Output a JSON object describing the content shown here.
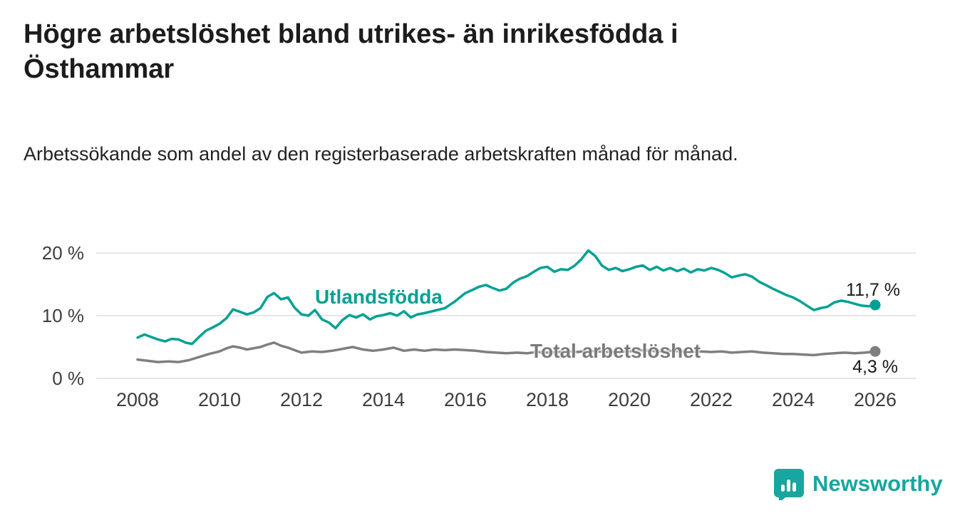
{
  "title": "Högre arbetslöshet bland utrikes- än inrikesfödda i Östhammar",
  "subtitle": "Arbetssökande som andel av den registerbaserade arbetskraften månad för månad.",
  "branding": {
    "name": "Newsworthy",
    "color": "#17a6a0",
    "icon": "bar-chart-speech-bubble"
  },
  "chart_data": {
    "type": "line",
    "title": "Högre arbetslöshet bland utrikes- än inrikesfödda i Östhammar",
    "subtitle": "Arbetssökande som andel av den registerbaserade arbetskraften månad för månad.",
    "grid": "horizontal",
    "x_axis": {
      "range": [
        2007.6,
        2026.9
      ],
      "ticks": [
        2008,
        2010,
        2012,
        2014,
        2016,
        2018,
        2020,
        2022,
        2024,
        2026
      ],
      "tick_labels": [
        "2008",
        "2010",
        "2012",
        "2014",
        "2016",
        "2018",
        "2020",
        "2022",
        "2024",
        "2026"
      ]
    },
    "y_axis": {
      "range": [
        0,
        21.5
      ],
      "ticks": [
        0,
        10,
        20
      ],
      "tick_labels": [
        "0 %",
        "10 %",
        "20 %"
      ],
      "unit": "%"
    },
    "series": [
      {
        "name": "Utlandsfödda",
        "color": "#00a193",
        "end_label": "11,7 %",
        "end_value": 11.7,
        "points": [
          [
            2008.0,
            6.5
          ],
          [
            2008.17,
            7.0
          ],
          [
            2008.33,
            6.6
          ],
          [
            2008.5,
            6.2
          ],
          [
            2008.67,
            5.9
          ],
          [
            2008.83,
            6.3
          ],
          [
            2009.0,
            6.2
          ],
          [
            2009.17,
            5.7
          ],
          [
            2009.33,
            5.5
          ],
          [
            2009.5,
            6.6
          ],
          [
            2009.67,
            7.6
          ],
          [
            2009.83,
            8.1
          ],
          [
            2010.0,
            8.7
          ],
          [
            2010.17,
            9.6
          ],
          [
            2010.33,
            11.0
          ],
          [
            2010.5,
            10.6
          ],
          [
            2010.67,
            10.2
          ],
          [
            2010.83,
            10.5
          ],
          [
            2011.0,
            11.2
          ],
          [
            2011.17,
            13.0
          ],
          [
            2011.33,
            13.6
          ],
          [
            2011.5,
            12.6
          ],
          [
            2011.67,
            12.9
          ],
          [
            2011.83,
            11.3
          ],
          [
            2012.0,
            10.2
          ],
          [
            2012.17,
            10.0
          ],
          [
            2012.33,
            10.9
          ],
          [
            2012.5,
            9.4
          ],
          [
            2012.67,
            8.9
          ],
          [
            2012.83,
            8.0
          ],
          [
            2013.0,
            9.3
          ],
          [
            2013.17,
            10.1
          ],
          [
            2013.33,
            9.7
          ],
          [
            2013.5,
            10.2
          ],
          [
            2013.67,
            9.4
          ],
          [
            2013.83,
            9.9
          ],
          [
            2014.0,
            10.1
          ],
          [
            2014.17,
            10.4
          ],
          [
            2014.33,
            10.0
          ],
          [
            2014.5,
            10.7
          ],
          [
            2014.67,
            9.7
          ],
          [
            2014.83,
            10.2
          ],
          [
            2015.0,
            10.4
          ],
          [
            2015.25,
            10.8
          ],
          [
            2015.5,
            11.2
          ],
          [
            2015.75,
            12.3
          ],
          [
            2016.0,
            13.6
          ],
          [
            2016.17,
            14.1
          ],
          [
            2016.33,
            14.6
          ],
          [
            2016.5,
            14.9
          ],
          [
            2016.67,
            14.4
          ],
          [
            2016.83,
            14.0
          ],
          [
            2017.0,
            14.3
          ],
          [
            2017.17,
            15.3
          ],
          [
            2017.33,
            15.9
          ],
          [
            2017.5,
            16.3
          ],
          [
            2017.67,
            17.0
          ],
          [
            2017.83,
            17.6
          ],
          [
            2018.0,
            17.8
          ],
          [
            2018.17,
            17.0
          ],
          [
            2018.33,
            17.4
          ],
          [
            2018.5,
            17.3
          ],
          [
            2018.67,
            18.0
          ],
          [
            2018.83,
            19.0
          ],
          [
            2019.0,
            20.4
          ],
          [
            2019.17,
            19.5
          ],
          [
            2019.33,
            18.0
          ],
          [
            2019.5,
            17.3
          ],
          [
            2019.67,
            17.6
          ],
          [
            2019.83,
            17.1
          ],
          [
            2020.0,
            17.4
          ],
          [
            2020.17,
            17.8
          ],
          [
            2020.33,
            18.0
          ],
          [
            2020.5,
            17.3
          ],
          [
            2020.67,
            17.8
          ],
          [
            2020.83,
            17.2
          ],
          [
            2021.0,
            17.6
          ],
          [
            2021.17,
            17.1
          ],
          [
            2021.33,
            17.5
          ],
          [
            2021.5,
            16.9
          ],
          [
            2021.67,
            17.4
          ],
          [
            2021.83,
            17.2
          ],
          [
            2022.0,
            17.6
          ],
          [
            2022.17,
            17.3
          ],
          [
            2022.33,
            16.8
          ],
          [
            2022.5,
            16.1
          ],
          [
            2022.67,
            16.4
          ],
          [
            2022.83,
            16.6
          ],
          [
            2023.0,
            16.2
          ],
          [
            2023.17,
            15.4
          ],
          [
            2023.33,
            14.9
          ],
          [
            2023.5,
            14.3
          ],
          [
            2023.67,
            13.8
          ],
          [
            2023.83,
            13.3
          ],
          [
            2024.0,
            12.9
          ],
          [
            2024.17,
            12.3
          ],
          [
            2024.33,
            11.6
          ],
          [
            2024.5,
            10.9
          ],
          [
            2024.67,
            11.2
          ],
          [
            2024.83,
            11.4
          ],
          [
            2025.0,
            12.1
          ],
          [
            2025.17,
            12.4
          ],
          [
            2025.33,
            12.2
          ],
          [
            2025.5,
            11.9
          ],
          [
            2025.67,
            11.6
          ],
          [
            2025.83,
            11.5
          ],
          [
            2026.0,
            11.7
          ]
        ]
      },
      {
        "name": "Total arbetslöshet",
        "color": "#7f7f7f",
        "end_label": "4,3 %",
        "end_value": 4.3,
        "points": [
          [
            2008.0,
            3.0
          ],
          [
            2008.25,
            2.8
          ],
          [
            2008.5,
            2.6
          ],
          [
            2008.75,
            2.7
          ],
          [
            2009.0,
            2.6
          ],
          [
            2009.25,
            2.9
          ],
          [
            2009.5,
            3.4
          ],
          [
            2009.75,
            3.9
          ],
          [
            2010.0,
            4.3
          ],
          [
            2010.17,
            4.8
          ],
          [
            2010.33,
            5.1
          ],
          [
            2010.5,
            4.9
          ],
          [
            2010.67,
            4.6
          ],
          [
            2010.83,
            4.8
          ],
          [
            2011.0,
            5.0
          ],
          [
            2011.17,
            5.4
          ],
          [
            2011.33,
            5.7
          ],
          [
            2011.5,
            5.2
          ],
          [
            2011.67,
            4.9
          ],
          [
            2011.83,
            4.5
          ],
          [
            2012.0,
            4.1
          ],
          [
            2012.25,
            4.3
          ],
          [
            2012.5,
            4.2
          ],
          [
            2012.75,
            4.4
          ],
          [
            2013.0,
            4.7
          ],
          [
            2013.25,
            5.0
          ],
          [
            2013.5,
            4.6
          ],
          [
            2013.75,
            4.4
          ],
          [
            2014.0,
            4.6
          ],
          [
            2014.25,
            4.9
          ],
          [
            2014.5,
            4.4
          ],
          [
            2014.75,
            4.6
          ],
          [
            2015.0,
            4.4
          ],
          [
            2015.25,
            4.6
          ],
          [
            2015.5,
            4.5
          ],
          [
            2015.75,
            4.6
          ],
          [
            2016.0,
            4.5
          ],
          [
            2016.25,
            4.4
          ],
          [
            2016.5,
            4.2
          ],
          [
            2016.75,
            4.1
          ],
          [
            2017.0,
            4.0
          ],
          [
            2017.25,
            4.1
          ],
          [
            2017.5,
            4.0
          ],
          [
            2017.75,
            4.2
          ],
          [
            2018.0,
            4.1
          ],
          [
            2018.25,
            4.2
          ],
          [
            2018.5,
            4.3
          ],
          [
            2018.75,
            4.2
          ],
          [
            2019.0,
            4.4
          ],
          [
            2019.25,
            4.3
          ],
          [
            2019.5,
            4.2
          ],
          [
            2019.75,
            4.3
          ],
          [
            2020.0,
            4.3
          ],
          [
            2020.25,
            4.5
          ],
          [
            2020.5,
            4.4
          ],
          [
            2020.75,
            4.3
          ],
          [
            2021.0,
            4.4
          ],
          [
            2021.25,
            4.3
          ],
          [
            2021.5,
            4.2
          ],
          [
            2021.75,
            4.3
          ],
          [
            2022.0,
            4.2
          ],
          [
            2022.25,
            4.3
          ],
          [
            2022.5,
            4.1
          ],
          [
            2022.75,
            4.2
          ],
          [
            2023.0,
            4.3
          ],
          [
            2023.25,
            4.1
          ],
          [
            2023.5,
            4.0
          ],
          [
            2023.75,
            3.9
          ],
          [
            2024.0,
            3.9
          ],
          [
            2024.25,
            3.8
          ],
          [
            2024.5,
            3.7
          ],
          [
            2024.75,
            3.9
          ],
          [
            2025.0,
            4.0
          ],
          [
            2025.25,
            4.1
          ],
          [
            2025.5,
            4.0
          ],
          [
            2025.75,
            4.1
          ],
          [
            2026.0,
            4.3
          ]
        ]
      }
    ]
  }
}
